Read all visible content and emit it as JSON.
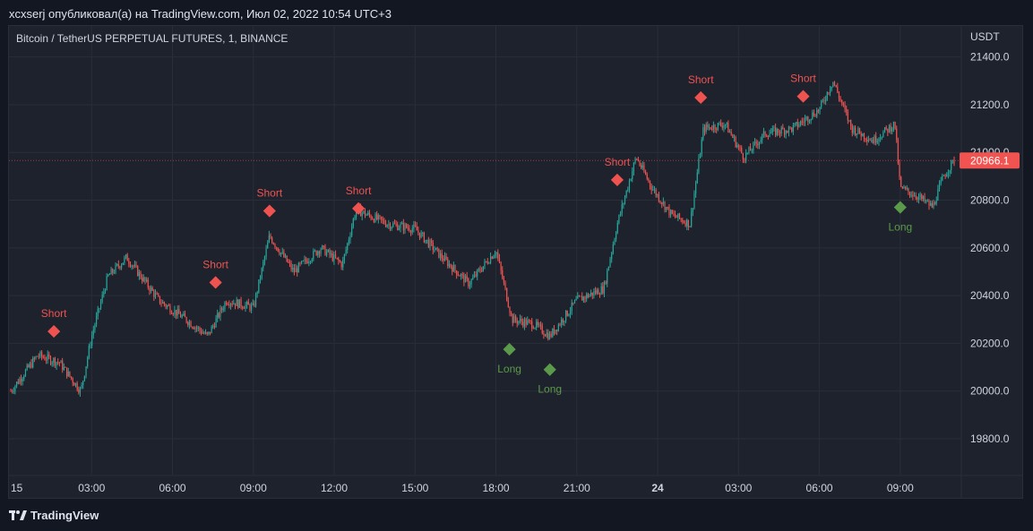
{
  "header": {
    "published_by": "xcxserj опубликовал(а) на TradingView.com, Июл 02, 2022 10:54 UTC+3"
  },
  "symbol_label": "Bitcoin / TetherUS PERPETUAL FUTURES, 1, BINANCE",
  "footer": {
    "brand": "TradingView"
  },
  "colors": {
    "background": "#131722",
    "panel": "#1e222d",
    "grid": "#2a2e39",
    "up": "#26a69a",
    "down": "#ef5350",
    "short_marker": "#ef5350",
    "long_marker": "#5b9a4b",
    "price_badge": "#f05350"
  },
  "chart_data": {
    "type": "candlestick",
    "currency": "USDT",
    "y_ticks": [
      "21400.0",
      "21200.0",
      "21000.0",
      "20800.0",
      "20600.0",
      "20400.0",
      "20200.0",
      "20000.0",
      "19800.0"
    ],
    "ylim": [
      19650,
      21530
    ],
    "x_ticks": [
      "15",
      "03:00",
      "06:00",
      "09:00",
      "12:00",
      "15:00",
      "18:00",
      "21:00",
      "24",
      "03:00",
      "06:00",
      "09:00"
    ],
    "x_tick_bold": [
      false,
      false,
      false,
      false,
      false,
      false,
      false,
      false,
      true,
      false,
      false,
      false
    ],
    "xlim_hours": [
      0,
      35
    ],
    "last_price": "20966.1",
    "last_price_value": 20966.1,
    "price_path": [
      {
        "h": 0.0,
        "p": 20000
      },
      {
        "h": 1.0,
        "p": 20150
      },
      {
        "h": 1.8,
        "p": 20120
      },
      {
        "h": 2.6,
        "p": 20000
      },
      {
        "h": 3.0,
        "p": 20230
      },
      {
        "h": 3.6,
        "p": 20480
      },
      {
        "h": 4.3,
        "p": 20560
      },
      {
        "h": 5.5,
        "p": 20380
      },
      {
        "h": 6.5,
        "p": 20300
      },
      {
        "h": 7.3,
        "p": 20230
      },
      {
        "h": 8.0,
        "p": 20380
      },
      {
        "h": 9.0,
        "p": 20350
      },
      {
        "h": 9.6,
        "p": 20650
      },
      {
        "h": 10.5,
        "p": 20500
      },
      {
        "h": 11.5,
        "p": 20600
      },
      {
        "h": 12.3,
        "p": 20530
      },
      {
        "h": 12.8,
        "p": 20760
      },
      {
        "h": 14.0,
        "p": 20700
      },
      {
        "h": 15.0,
        "p": 20680
      },
      {
        "h": 16.0,
        "p": 20560
      },
      {
        "h": 17.0,
        "p": 20450
      },
      {
        "h": 18.0,
        "p": 20590
      },
      {
        "h": 18.6,
        "p": 20300
      },
      {
        "h": 19.4,
        "p": 20280
      },
      {
        "h": 20.0,
        "p": 20230
      },
      {
        "h": 21.0,
        "p": 20380
      },
      {
        "h": 22.0,
        "p": 20430
      },
      {
        "h": 22.5,
        "p": 20700
      },
      {
        "h": 23.2,
        "p": 20980
      },
      {
        "h": 23.8,
        "p": 20850
      },
      {
        "h": 24.5,
        "p": 20740
      },
      {
        "h": 25.2,
        "p": 20700
      },
      {
        "h": 25.7,
        "p": 21100
      },
      {
        "h": 26.5,
        "p": 21120
      },
      {
        "h": 27.2,
        "p": 20980
      },
      {
        "h": 28.0,
        "p": 21080
      },
      {
        "h": 29.0,
        "p": 21100
      },
      {
        "h": 30.0,
        "p": 21180
      },
      {
        "h": 30.5,
        "p": 21300
      },
      {
        "h": 31.2,
        "p": 21100
      },
      {
        "h": 32.0,
        "p": 21050
      },
      {
        "h": 32.8,
        "p": 21120
      },
      {
        "h": 33.0,
        "p": 20850
      },
      {
        "h": 33.6,
        "p": 20820
      },
      {
        "h": 34.2,
        "p": 20770
      },
      {
        "h": 34.6,
        "p": 20900
      },
      {
        "h": 35.0,
        "p": 20966
      }
    ],
    "signals": [
      {
        "label": "Short",
        "type": "short",
        "h": 1.6,
        "price": 20250
      },
      {
        "label": "Short",
        "type": "short",
        "h": 7.6,
        "price": 20455
      },
      {
        "label": "Short",
        "type": "short",
        "h": 9.6,
        "price": 20755
      },
      {
        "label": "Short",
        "type": "short",
        "h": 12.9,
        "price": 20765
      },
      {
        "label": "Long",
        "type": "long",
        "h": 18.5,
        "price": 20175
      },
      {
        "label": "Long",
        "type": "long",
        "h": 20.0,
        "price": 20090
      },
      {
        "label": "Short",
        "type": "short",
        "h": 22.5,
        "price": 20885
      },
      {
        "label": "Short",
        "type": "short",
        "h": 25.6,
        "price": 21230
      },
      {
        "label": "Short",
        "type": "short",
        "h": 29.4,
        "price": 21235
      },
      {
        "label": "Long",
        "type": "long",
        "h": 33.0,
        "price": 20770
      }
    ]
  }
}
